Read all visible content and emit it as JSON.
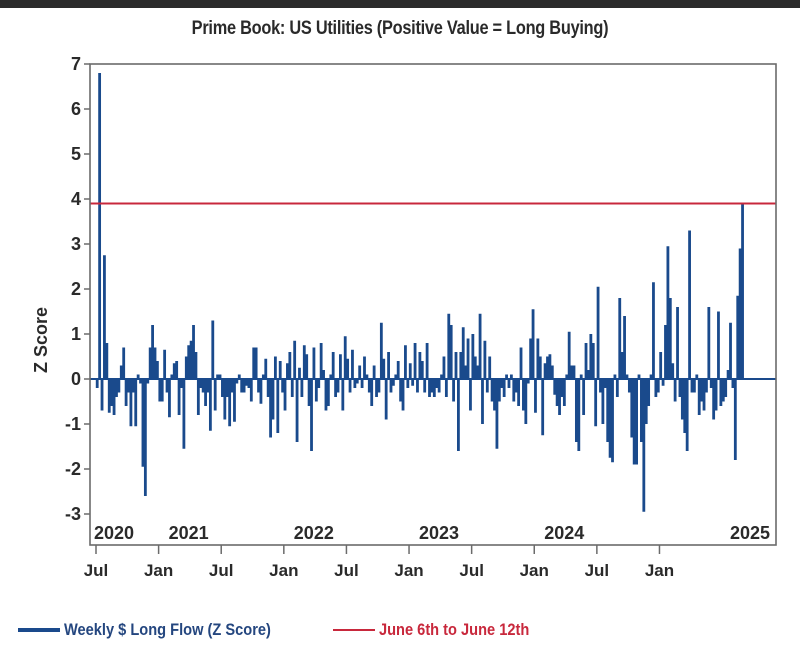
{
  "chart_data": {
    "type": "bar",
    "title": "Prime Book: US Utilities (Positive Value = Long Buying)",
    "xlabel": "",
    "ylabel": "Z Score",
    "ylim": [
      -3.5,
      7
    ],
    "yticks": [
      "7",
      "6",
      "5",
      "4",
      "3",
      "2",
      "1",
      "0",
      "-1",
      "-2",
      "-3"
    ],
    "ytick_values": [
      7,
      6,
      5,
      4,
      3,
      2,
      1,
      0,
      -1,
      -2,
      -3
    ],
    "xticks": [
      {
        "label": "Jul",
        "week": 0
      },
      {
        "label": "Jan",
        "week": 26
      },
      {
        "label": "Jul",
        "week": 52
      },
      {
        "label": "Jan",
        "week": 78
      },
      {
        "label": "Jul",
        "week": 104
      },
      {
        "label": "Jan",
        "week": 130
      },
      {
        "label": "Jul",
        "week": 156
      },
      {
        "label": "Jan",
        "week": 182
      },
      {
        "label": "Jul",
        "week": 208
      },
      {
        "label": "Jan",
        "week": 234
      }
    ],
    "year_labels": [
      {
        "label": "2020",
        "week": 0
      },
      {
        "label": "2021",
        "week": 26
      },
      {
        "label": "2022",
        "week": 78
      },
      {
        "label": "2023",
        "week": 130
      },
      {
        "label": "2024",
        "week": 182
      },
      {
        "label": "2025",
        "week": 234
      }
    ],
    "grid": false,
    "reference_line": {
      "name": "June 6th to June 12th",
      "value": 3.9,
      "color": "#c8283c"
    },
    "series": [
      {
        "name": "Weekly $ Long Flow (Z Score)",
        "color": "#1a4a8c",
        "values": [
          -0.2,
          6.8,
          -0.7,
          2.75,
          0.8,
          -0.75,
          -0.6,
          -0.8,
          -0.4,
          -0.3,
          0.3,
          0.7,
          -0.6,
          -0.3,
          -1.05,
          -0.3,
          -1.05,
          0.1,
          -0.1,
          -1.95,
          -2.6,
          -0.1,
          0.7,
          1.2,
          0.7,
          0.4,
          -0.5,
          -0.5,
          0.65,
          -0.3,
          -0.85,
          0.1,
          0.35,
          0.4,
          -0.8,
          -0.2,
          -1.55,
          0.5,
          0.75,
          0.85,
          1.2,
          0.6,
          -0.8,
          -0.2,
          -0.3,
          -0.6,
          -0.3,
          -1.15,
          1.3,
          -0.7,
          0.1,
          0.1,
          -0.4,
          -0.9,
          -0.4,
          -1.05,
          -0.3,
          -0.95,
          -0.1,
          0.1,
          -0.3,
          -0.3,
          -0.15,
          -0.2,
          -0.5,
          0.7,
          0.7,
          -0.3,
          -0.55,
          0.1,
          0.45,
          -0.4,
          -1.3,
          -0.9,
          0.5,
          -1.2,
          0.4,
          -0.3,
          -0.7,
          0.35,
          0.6,
          -0.4,
          0.85,
          -1.4,
          0.25,
          -0.4,
          0.75,
          0.55,
          -0.6,
          -1.6,
          0.7,
          -0.5,
          -0.2,
          0.8,
          0.2,
          -0.7,
          -0.6,
          0.1,
          0.6,
          -0.4,
          -0.3,
          0.55,
          -0.7,
          0.95,
          0.45,
          -0.3,
          0.65,
          -0.2,
          -0.1,
          0.3,
          -0.2,
          0.5,
          0.1,
          -0.3,
          -0.6,
          0.3,
          -0.4,
          -0.3,
          1.25,
          0.45,
          -0.9,
          0.6,
          -0.3,
          -0.15,
          0.1,
          0.4,
          -0.5,
          -0.7,
          0.75,
          -0.2,
          0.35,
          -0.15,
          0.8,
          -0.3,
          0.6,
          0.4,
          -0.3,
          0.8,
          -0.4,
          -0.3,
          -0.4,
          -0.2,
          -0.3,
          0.1,
          0.5,
          -0.4,
          1.45,
          1.2,
          -0.5,
          0.6,
          -1.6,
          0.6,
          1.15,
          0.3,
          0.9,
          -0.7,
          1.0,
          0.5,
          0.3,
          1.45,
          -1.0,
          0.85,
          -0.3,
          0.5,
          -0.5,
          -0.7,
          -1.55,
          -0.5,
          -0.2,
          -0.4,
          0.1,
          -0.2,
          0.1,
          -0.5,
          -0.3,
          -0.6,
          0.7,
          -0.7,
          -1.0,
          -0.1,
          0.9,
          1.55,
          -0.75,
          0.9,
          0.5,
          -1.25,
          0.35,
          0.5,
          0.55,
          0.3,
          -0.35,
          -0.6,
          -0.8,
          -0.4,
          -0.6,
          0.1,
          1.05,
          0.3,
          0.3,
          -1.4,
          -1.6,
          0.1,
          -0.8,
          0.8,
          0.2,
          1.0,
          0.8,
          -1.05,
          2.05,
          -0.3,
          -1.0,
          -0.2,
          -1.4,
          -1.75,
          -1.85,
          0.1,
          -0.4,
          1.8,
          0.6,
          1.4,
          0.1,
          -0.3,
          -1.3,
          -1.9,
          -1.9,
          0.1,
          -1.4,
          -2.95,
          -1.0,
          -0.6,
          0.1,
          2.15,
          -0.4,
          -0.3,
          0.6,
          -0.15,
          1.2,
          2.95,
          1.8,
          0.35,
          -0.5,
          1.6,
          -0.4,
          -0.9,
          -1.2,
          -1.6,
          3.3,
          -0.3,
          -0.3,
          0.1,
          -0.8,
          -0.5,
          -0.7,
          -0.3,
          1.6,
          -0.2,
          -0.9,
          -0.7,
          1.5,
          -0.6,
          -0.5,
          -0.4,
          0.2,
          1.25,
          -0.2,
          -1.8,
          1.85,
          2.9,
          3.9
        ]
      }
    ]
  },
  "legend": {
    "items": [
      {
        "label": "Weekly $ Long Flow (Z Score)",
        "color": "#1a4a8c",
        "text_color": "#24467f"
      },
      {
        "label": "June 6th to June 12th",
        "color": "#c8283c",
        "text_color": "#c8283c"
      }
    ]
  }
}
